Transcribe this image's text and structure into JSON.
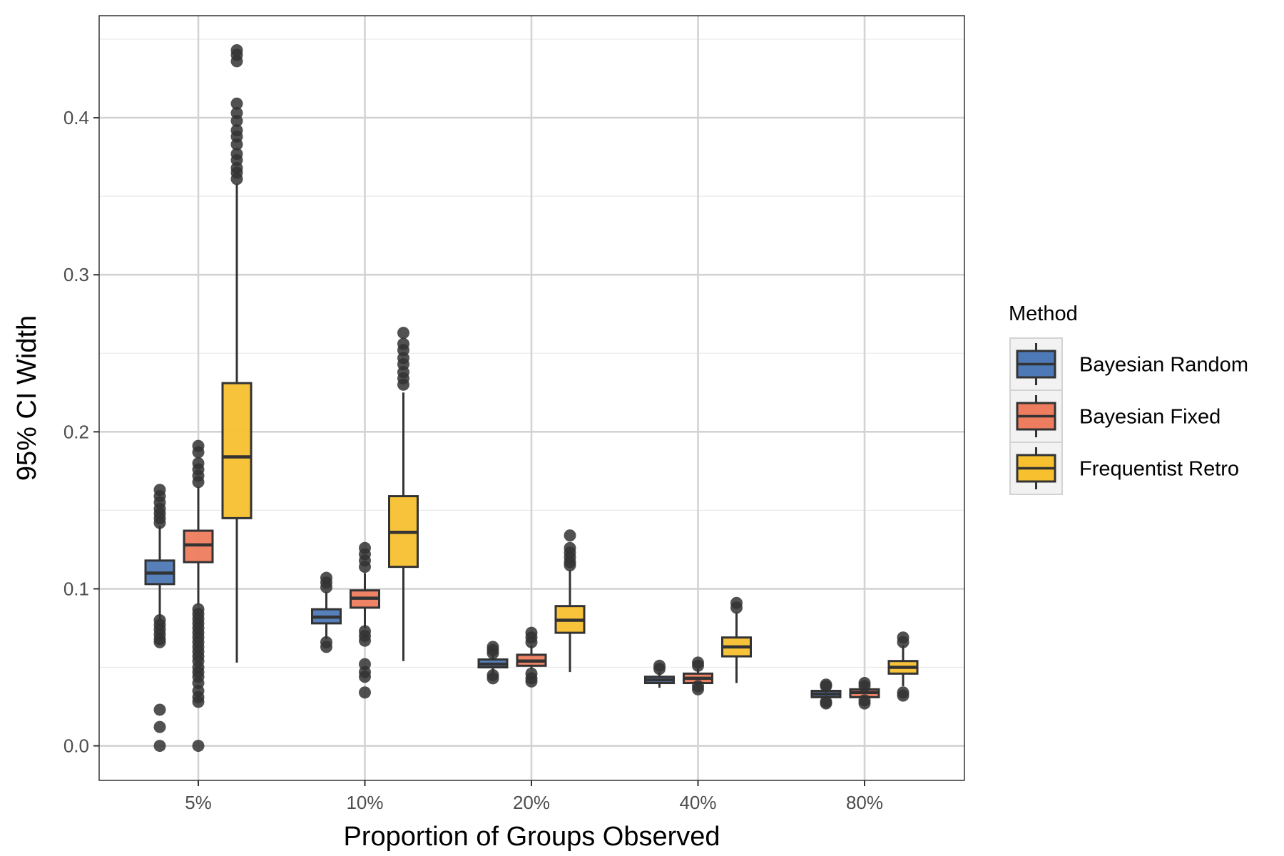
{
  "chart_data": {
    "type": "box",
    "xlabel": "Proportion of Groups Observed",
    "ylabel": "95% CI Width",
    "ylim": [
      -0.022,
      0.465
    ],
    "yticks": [
      0.0,
      0.1,
      0.2,
      0.3,
      0.4
    ],
    "ytick_labels": [
      "0.0",
      "0.1",
      "0.2",
      "0.3",
      "0.4"
    ],
    "categories": [
      "5%",
      "10%",
      "20%",
      "40%",
      "80%"
    ],
    "legend": {
      "title": "Method",
      "placement": "right"
    },
    "grid": true,
    "series": [
      {
        "name": "Bayesian Random",
        "color": "#4E79B7",
        "boxes": [
          {
            "min": 0.08,
            "q1": 0.103,
            "median": 0.11,
            "q3": 0.118,
            "max": 0.14,
            "outliers": [
              0.163,
              0.159,
              0.155,
              0.151,
              0.148,
              0.145,
              0.142,
              0.08,
              0.077,
              0.074,
              0.071,
              0.068,
              0.066,
              0.023,
              0.012,
              0.0
            ]
          },
          {
            "min": 0.068,
            "q1": 0.078,
            "median": 0.082,
            "q3": 0.087,
            "max": 0.098,
            "outliers": [
              0.107,
              0.104,
              0.101,
              0.066,
              0.063
            ]
          },
          {
            "min": 0.046,
            "q1": 0.05,
            "median": 0.052,
            "q3": 0.055,
            "max": 0.058,
            "outliers": [
              0.063,
              0.061,
              0.059,
              0.045,
              0.043
            ]
          },
          {
            "min": 0.037,
            "q1": 0.04,
            "median": 0.042,
            "q3": 0.044,
            "max": 0.047,
            "outliers": [
              0.051,
              0.049
            ]
          },
          {
            "min": 0.03,
            "q1": 0.031,
            "median": 0.033,
            "q3": 0.035,
            "max": 0.036,
            "outliers": [
              0.039,
              0.038,
              0.028,
              0.027
            ]
          }
        ]
      },
      {
        "name": "Bayesian Fixed",
        "color": "#EE7C5E",
        "boxes": [
          {
            "min": 0.09,
            "q1": 0.117,
            "median": 0.128,
            "q3": 0.137,
            "max": 0.165,
            "outliers": [
              0.191,
              0.187,
              0.18,
              0.176,
              0.172,
              0.168,
              0.087,
              0.084,
              0.081,
              0.078,
              0.075,
              0.072,
              0.069,
              0.066,
              0.063,
              0.06,
              0.057,
              0.054,
              0.05,
              0.047,
              0.044,
              0.04,
              0.035,
              0.031,
              0.028,
              0.0
            ]
          },
          {
            "min": 0.075,
            "q1": 0.088,
            "median": 0.094,
            "q3": 0.099,
            "max": 0.11,
            "outliers": [
              0.126,
              0.122,
              0.118,
              0.114,
              0.073,
              0.07,
              0.067,
              0.052,
              0.047,
              0.044,
              0.034
            ]
          },
          {
            "min": 0.049,
            "q1": 0.051,
            "median": 0.054,
            "q3": 0.058,
            "max": 0.064,
            "outliers": [
              0.072,
              0.069,
              0.066,
              0.046,
              0.043,
              0.041
            ]
          },
          {
            "min": 0.038,
            "q1": 0.04,
            "median": 0.043,
            "q3": 0.046,
            "max": 0.049,
            "outliers": [
              0.053,
              0.051,
              0.038,
              0.036
            ]
          },
          {
            "min": 0.03,
            "q1": 0.031,
            "median": 0.034,
            "q3": 0.036,
            "max": 0.037,
            "outliers": [
              0.04,
              0.038,
              0.029,
              0.027
            ]
          }
        ]
      },
      {
        "name": "Frequentist Retro",
        "color": "#F7C02F",
        "boxes": [
          {
            "min": 0.053,
            "q1": 0.145,
            "median": 0.184,
            "q3": 0.231,
            "max": 0.358,
            "outliers": [
              0.443,
              0.44,
              0.436,
              0.409,
              0.403,
              0.398,
              0.392,
              0.388,
              0.383,
              0.377,
              0.373,
              0.368,
              0.365,
              0.361
            ]
          },
          {
            "min": 0.054,
            "q1": 0.114,
            "median": 0.136,
            "q3": 0.159,
            "max": 0.225,
            "outliers": [
              0.263,
              0.256,
              0.252,
              0.247,
              0.243,
              0.238,
              0.234,
              0.23
            ]
          },
          {
            "min": 0.047,
            "q1": 0.072,
            "median": 0.08,
            "q3": 0.089,
            "max": 0.112,
            "outliers": [
              0.134,
              0.126,
              0.123,
              0.12,
              0.117,
              0.115
            ]
          },
          {
            "min": 0.04,
            "q1": 0.057,
            "median": 0.063,
            "q3": 0.069,
            "max": 0.085,
            "outliers": [
              0.091,
              0.088
            ]
          },
          {
            "min": 0.038,
            "q1": 0.046,
            "median": 0.05,
            "q3": 0.054,
            "max": 0.064,
            "outliers": [
              0.069,
              0.066,
              0.034,
              0.032
            ]
          }
        ]
      }
    ]
  }
}
